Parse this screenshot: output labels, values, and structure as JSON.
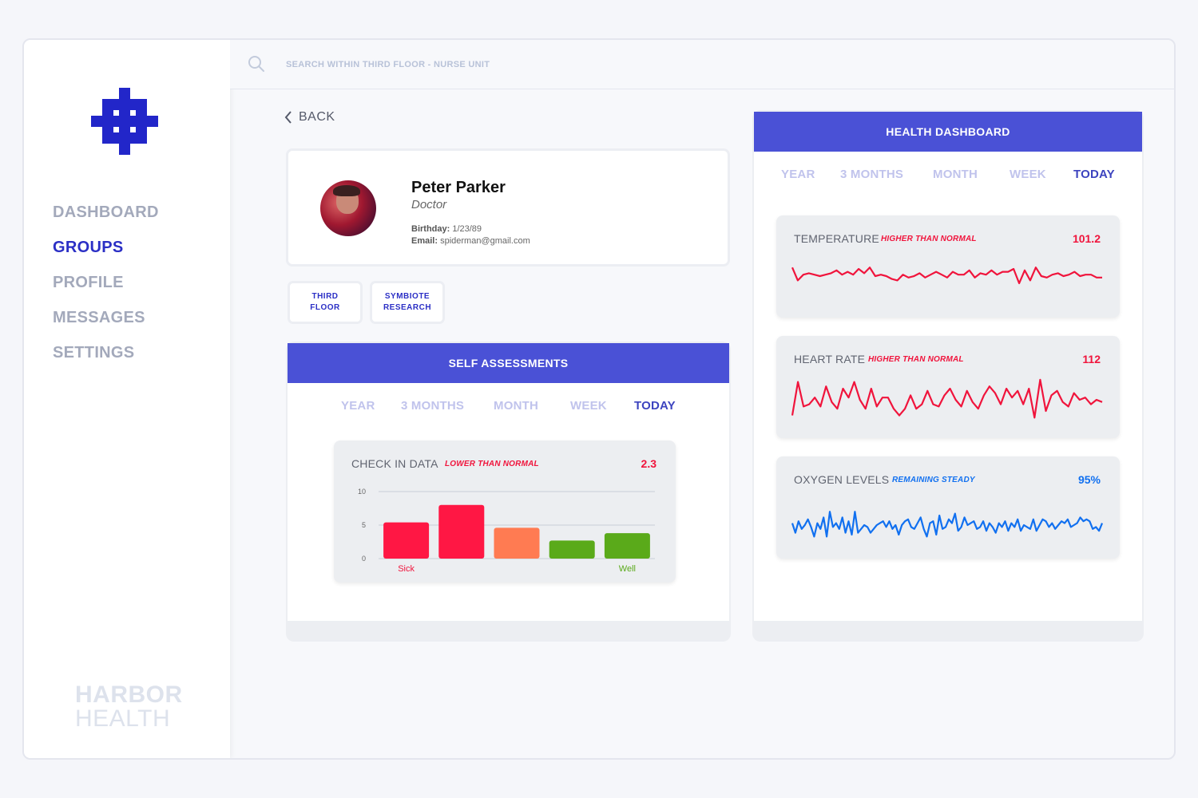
{
  "search": {
    "placeholder": "SEARCH WITHIN THIRD FLOOR - NURSE UNIT"
  },
  "sidebar": {
    "items": [
      {
        "label": "DASHBOARD",
        "active": false
      },
      {
        "label": "GROUPS",
        "active": true
      },
      {
        "label": "PROFILE",
        "active": false
      },
      {
        "label": "MESSAGES",
        "active": false
      },
      {
        "label": "SETTINGS",
        "active": false
      }
    ],
    "brand_line1": "HARBOR",
    "brand_line2": "HEALTH"
  },
  "back_label": "BACK",
  "profile": {
    "name": "Peter Parker",
    "role": "Doctor",
    "birthday_label": "Birthday:",
    "birthday": "1/23/89",
    "email_label": "Email:",
    "email": "spiderman@gmail.com"
  },
  "tags": [
    {
      "line1": "THIRD",
      "line2": "FLOOR"
    },
    {
      "line1": "SYMBIOTE",
      "line2": "RESEARCH"
    }
  ],
  "time_tabs": [
    "YEAR",
    "3 MONTHS",
    "MONTH",
    "WEEK",
    "TODAY"
  ],
  "active_tab": "TODAY",
  "self_assessments": {
    "title": "SELF ASSESSMENTS",
    "card_title": "CHECK IN DATA",
    "status": "LOWER THAN NORMAL",
    "value": "2.3"
  },
  "chart_data": {
    "type": "bar",
    "categories": [
      "Sick",
      "",
      "",
      "",
      "Well"
    ],
    "values": [
      5.4,
      8,
      4.6,
      2.7,
      3.8
    ],
    "colors": [
      "#ff1744",
      "#ff1744",
      "#ff7b52",
      "#5aaa1a",
      "#5aaa1a"
    ],
    "yticks": [
      0,
      5,
      10
    ],
    "ylim": [
      0,
      10
    ],
    "label_colors": [
      "#f0143c",
      "",
      "",
      "",
      "#5aaa1a"
    ]
  },
  "health_dashboard": {
    "title": "HEALTH DASHBOARD",
    "metrics": [
      {
        "title": "TEMPERATURE",
        "status": "HIGHER THAN NORMAL",
        "value": "101.2",
        "color": "#f0143c",
        "series": [
          0.8,
          0.35,
          0.55,
          0.6,
          0.55,
          0.5,
          0.55,
          0.6,
          0.7,
          0.55,
          0.65,
          0.55,
          0.75,
          0.6,
          0.8,
          0.5,
          0.55,
          0.5,
          0.4,
          0.35,
          0.55,
          0.45,
          0.5,
          0.6,
          0.45,
          0.55,
          0.65,
          0.55,
          0.45,
          0.65,
          0.55,
          0.55,
          0.7,
          0.45,
          0.6,
          0.55,
          0.7,
          0.55,
          0.65,
          0.65,
          0.75,
          0.25,
          0.7,
          0.35,
          0.8,
          0.5,
          0.45,
          0.55,
          0.6,
          0.5,
          0.55,
          0.65,
          0.5,
          0.55,
          0.55,
          0.45,
          0.45
        ]
      },
      {
        "title": "HEART RATE",
        "status": "HIGHER THAN NORMAL",
        "value": "112",
        "color": "#f0143c",
        "series": [
          0.15,
          0.9,
          0.35,
          0.4,
          0.55,
          0.35,
          0.8,
          0.45,
          0.3,
          0.75,
          0.55,
          0.9,
          0.5,
          0.3,
          0.75,
          0.35,
          0.55,
          0.55,
          0.3,
          0.15,
          0.3,
          0.6,
          0.3,
          0.4,
          0.7,
          0.4,
          0.35,
          0.6,
          0.75,
          0.5,
          0.35,
          0.7,
          0.45,
          0.3,
          0.6,
          0.8,
          0.65,
          0.4,
          0.75,
          0.55,
          0.7,
          0.4,
          0.75,
          0.1,
          0.95,
          0.25,
          0.6,
          0.7,
          0.45,
          0.35,
          0.65,
          0.5,
          0.55,
          0.4,
          0.5,
          0.45
        ]
      },
      {
        "title": "OXYGEN LEVELS",
        "status": "REMAINING STEADY",
        "value": "95%",
        "color": "#1170f0",
        "series": [
          0.55,
          0.3,
          0.6,
          0.4,
          0.5,
          0.65,
          0.45,
          0.2,
          0.55,
          0.4,
          0.7,
          0.2,
          0.85,
          0.45,
          0.55,
          0.4,
          0.7,
          0.3,
          0.6,
          0.25,
          0.85,
          0.3,
          0.4,
          0.5,
          0.45,
          0.3,
          0.4,
          0.5,
          0.55,
          0.6,
          0.45,
          0.6,
          0.4,
          0.5,
          0.25,
          0.5,
          0.6,
          0.65,
          0.45,
          0.4,
          0.55,
          0.7,
          0.4,
          0.2,
          0.55,
          0.6,
          0.25,
          0.75,
          0.4,
          0.45,
          0.65,
          0.55,
          0.8,
          0.35,
          0.45,
          0.7,
          0.5,
          0.55,
          0.6,
          0.4,
          0.45,
          0.6,
          0.35,
          0.55,
          0.45,
          0.3,
          0.55,
          0.45,
          0.6,
          0.35,
          0.55,
          0.45,
          0.65,
          0.35,
          0.5,
          0.45,
          0.4,
          0.65,
          0.35,
          0.5,
          0.65,
          0.6,
          0.45,
          0.55,
          0.4,
          0.5,
          0.6,
          0.55,
          0.65,
          0.45,
          0.5,
          0.55,
          0.7,
          0.6,
          0.65,
          0.6,
          0.4,
          0.45,
          0.35,
          0.55
        ]
      }
    ]
  }
}
